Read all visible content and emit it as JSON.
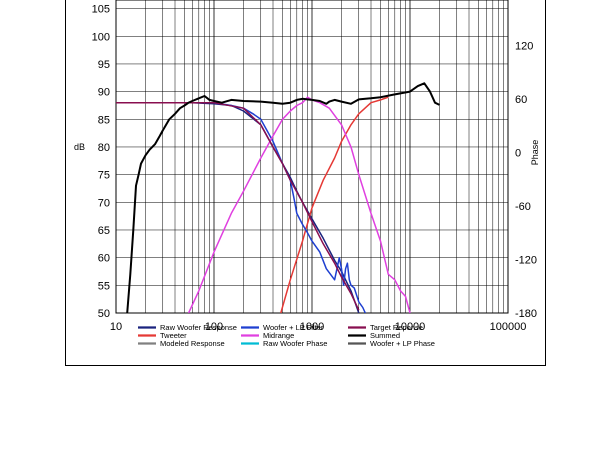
{
  "chart_data": {
    "type": "line",
    "title": "",
    "xlabel": "",
    "ylabel": "dB",
    "y2label": "Phase",
    "x_scale": "log",
    "xlim": [
      10,
      100000
    ],
    "ylim": [
      50,
      108
    ],
    "y2lim": [
      -180,
      180
    ],
    "grid": true,
    "legend_position": "bottom",
    "x_tick_labels": [
      "10",
      "100",
      "1000",
      "10000",
      "100000"
    ],
    "x_ticks": [
      10,
      100,
      1000,
      10000,
      100000
    ],
    "y_ticks": [
      50,
      55,
      60,
      65,
      70,
      75,
      80,
      85,
      90,
      95,
      100,
      105
    ],
    "y_tick_labels": [
      "50",
      "55",
      "60",
      "65",
      "70",
      "75",
      "80",
      "85",
      "90",
      "95",
      "100",
      "105"
    ],
    "y2_ticks": [
      -180,
      -120,
      -60,
      0,
      60,
      120
    ],
    "y2_tick_labels": [
      "-180",
      "-120",
      "-60",
      "0",
      "60",
      "120"
    ],
    "series": [
      {
        "name": "Raw Woofer Response",
        "color": "#1a237e",
        "axis": "left",
        "x": [
          10,
          60,
          100,
          150,
          200,
          300,
          400,
          500,
          600,
          700,
          800,
          1000,
          1300,
          1700,
          2000,
          2500,
          3000
        ],
        "y": [
          88,
          88,
          87.8,
          87.5,
          86.5,
          84,
          80,
          77,
          74.5,
          72,
          70,
          67,
          63.5,
          59.5,
          57.5,
          54,
          50
        ]
      },
      {
        "name": "Tweeter",
        "color": "#e53935",
        "axis": "left",
        "x": [
          480,
          600,
          800,
          1000,
          1300,
          1700,
          2000,
          2500,
          3000,
          4000,
          5000,
          6000
        ],
        "y": [
          50,
          56,
          63,
          69,
          74,
          78,
          81,
          84,
          86,
          88,
          88.5,
          89
        ]
      },
      {
        "name": "Modeled Response",
        "color": "#808080",
        "axis": "left",
        "x": [],
        "y": []
      },
      {
        "name": "Woofer + LP Filter",
        "color": "#1e3fd0",
        "axis": "left",
        "x": [
          10,
          60,
          100,
          150,
          200,
          250,
          300,
          400,
          500,
          600,
          650,
          700,
          800,
          900,
          1000,
          1200,
          1400,
          1700,
          1900,
          2000,
          2100,
          2200,
          2300,
          2400,
          2500,
          2700,
          3000,
          3300,
          3500
        ],
        "y": [
          88,
          88,
          88,
          87.5,
          87,
          86,
          85,
          81,
          77,
          74,
          71,
          68,
          66,
          64.5,
          63,
          61,
          58,
          56,
          60,
          58,
          55,
          58,
          59,
          56,
          55,
          54.5,
          52,
          51,
          50
        ]
      },
      {
        "name": "Midrange",
        "color": "#e040e0",
        "axis": "left",
        "x": [
          55,
          70,
          100,
          150,
          200,
          300,
          400,
          500,
          600,
          700,
          800,
          900,
          1000,
          1200,
          1500,
          2000,
          2500,
          3000,
          4000,
          5000,
          6000,
          7000,
          8000,
          9000,
          10000
        ],
        "y": [
          50,
          54,
          61,
          68,
          72,
          78,
          82,
          85,
          86.5,
          87.5,
          88,
          89,
          88.5,
          88,
          87,
          84,
          80,
          75,
          68,
          63,
          57,
          56,
          54,
          53,
          50
        ]
      },
      {
        "name": "Raw Woofer Phase",
        "color": "#00bcd4",
        "axis": "right",
        "x": [],
        "y": []
      },
      {
        "name": "Target Reponse",
        "color": "#880e4f",
        "axis": "left",
        "x": [
          10,
          60,
          100,
          200,
          300,
          400,
          500,
          600,
          800,
          1000,
          1300,
          1700,
          2000,
          2500,
          3000
        ],
        "y": [
          88,
          88,
          88,
          87,
          84,
          80,
          77,
          74,
          70,
          66.5,
          62.5,
          59,
          56.5,
          53.5,
          50.5
        ]
      },
      {
        "name": "Summed",
        "color": "#000000",
        "axis": "left",
        "x": [
          13,
          14,
          15,
          16,
          17,
          18,
          20,
          22,
          25,
          28,
          30,
          35,
          40,
          45,
          50,
          55,
          60,
          70,
          80,
          90,
          100,
          120,
          150,
          200,
          300,
          400,
          500,
          600,
          700,
          800,
          900,
          1000,
          1200,
          1400,
          1500,
          1700,
          2000,
          2500,
          3000,
          4000,
          5000,
          7000,
          10000,
          12000,
          14000,
          16000,
          18000,
          20000
        ],
        "y": [
          50,
          57,
          65,
          73,
          75,
          77,
          78.5,
          79.5,
          80.5,
          82,
          83,
          85,
          86,
          87,
          87.5,
          88,
          88.3,
          88.8,
          89.2,
          88.5,
          88.3,
          88,
          88.5,
          88.3,
          88.2,
          88,
          87.8,
          88,
          88.5,
          88.7,
          88.6,
          88.5,
          88.3,
          87.8,
          88.2,
          88.5,
          88.2,
          87.8,
          88.6,
          88.8,
          89,
          89.5,
          90,
          91,
          91.5,
          90,
          88,
          87.6
        ]
      },
      {
        "name": "Woofer + LP  Phase",
        "color": "#555555",
        "axis": "right",
        "x": [],
        "y": []
      }
    ]
  }
}
